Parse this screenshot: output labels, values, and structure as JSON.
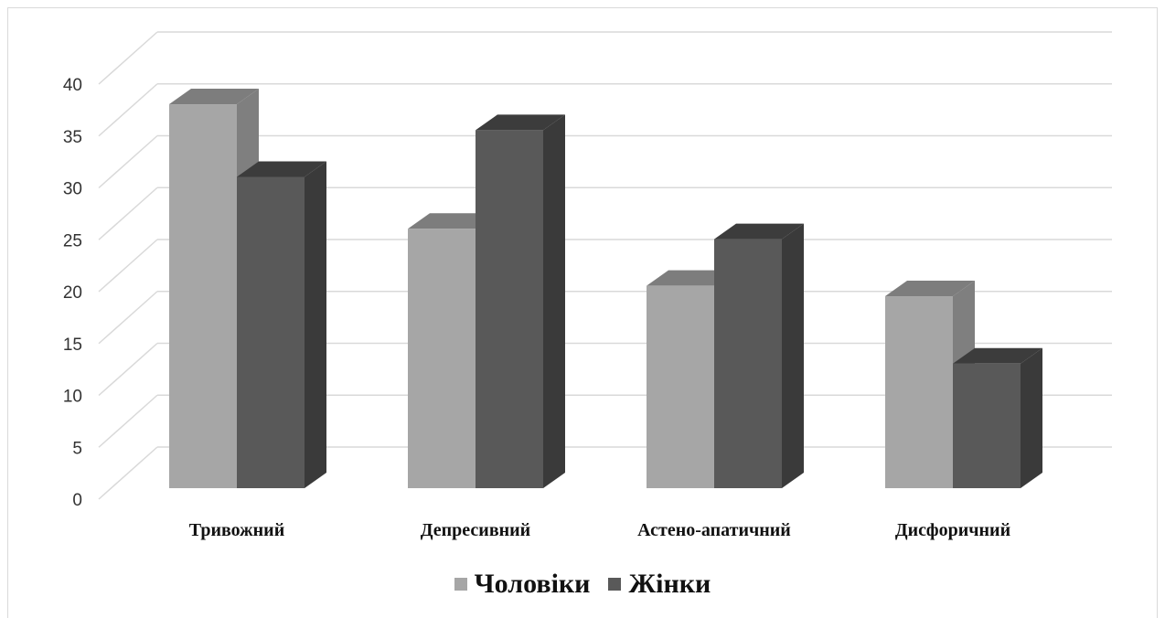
{
  "chart_data": {
    "type": "bar",
    "categories": [
      "Тривожний",
      "Депресивний",
      "Астено-апатичний",
      "Дисфоричний"
    ],
    "series": [
      {
        "name": "Чоловіки",
        "values": [
          37,
          25,
          19.5,
          18.5
        ],
        "color": "#a6a6a6"
      },
      {
        "name": "Жінки",
        "values": [
          30,
          34.5,
          24,
          12
        ],
        "color": "#595959"
      }
    ],
    "ylim": [
      0,
      40
    ],
    "yticks": [
      0,
      5,
      10,
      15,
      20,
      25,
      30,
      35,
      40
    ],
    "grid": true,
    "legend_position": "bottom",
    "style": "3d-clustered-column"
  }
}
